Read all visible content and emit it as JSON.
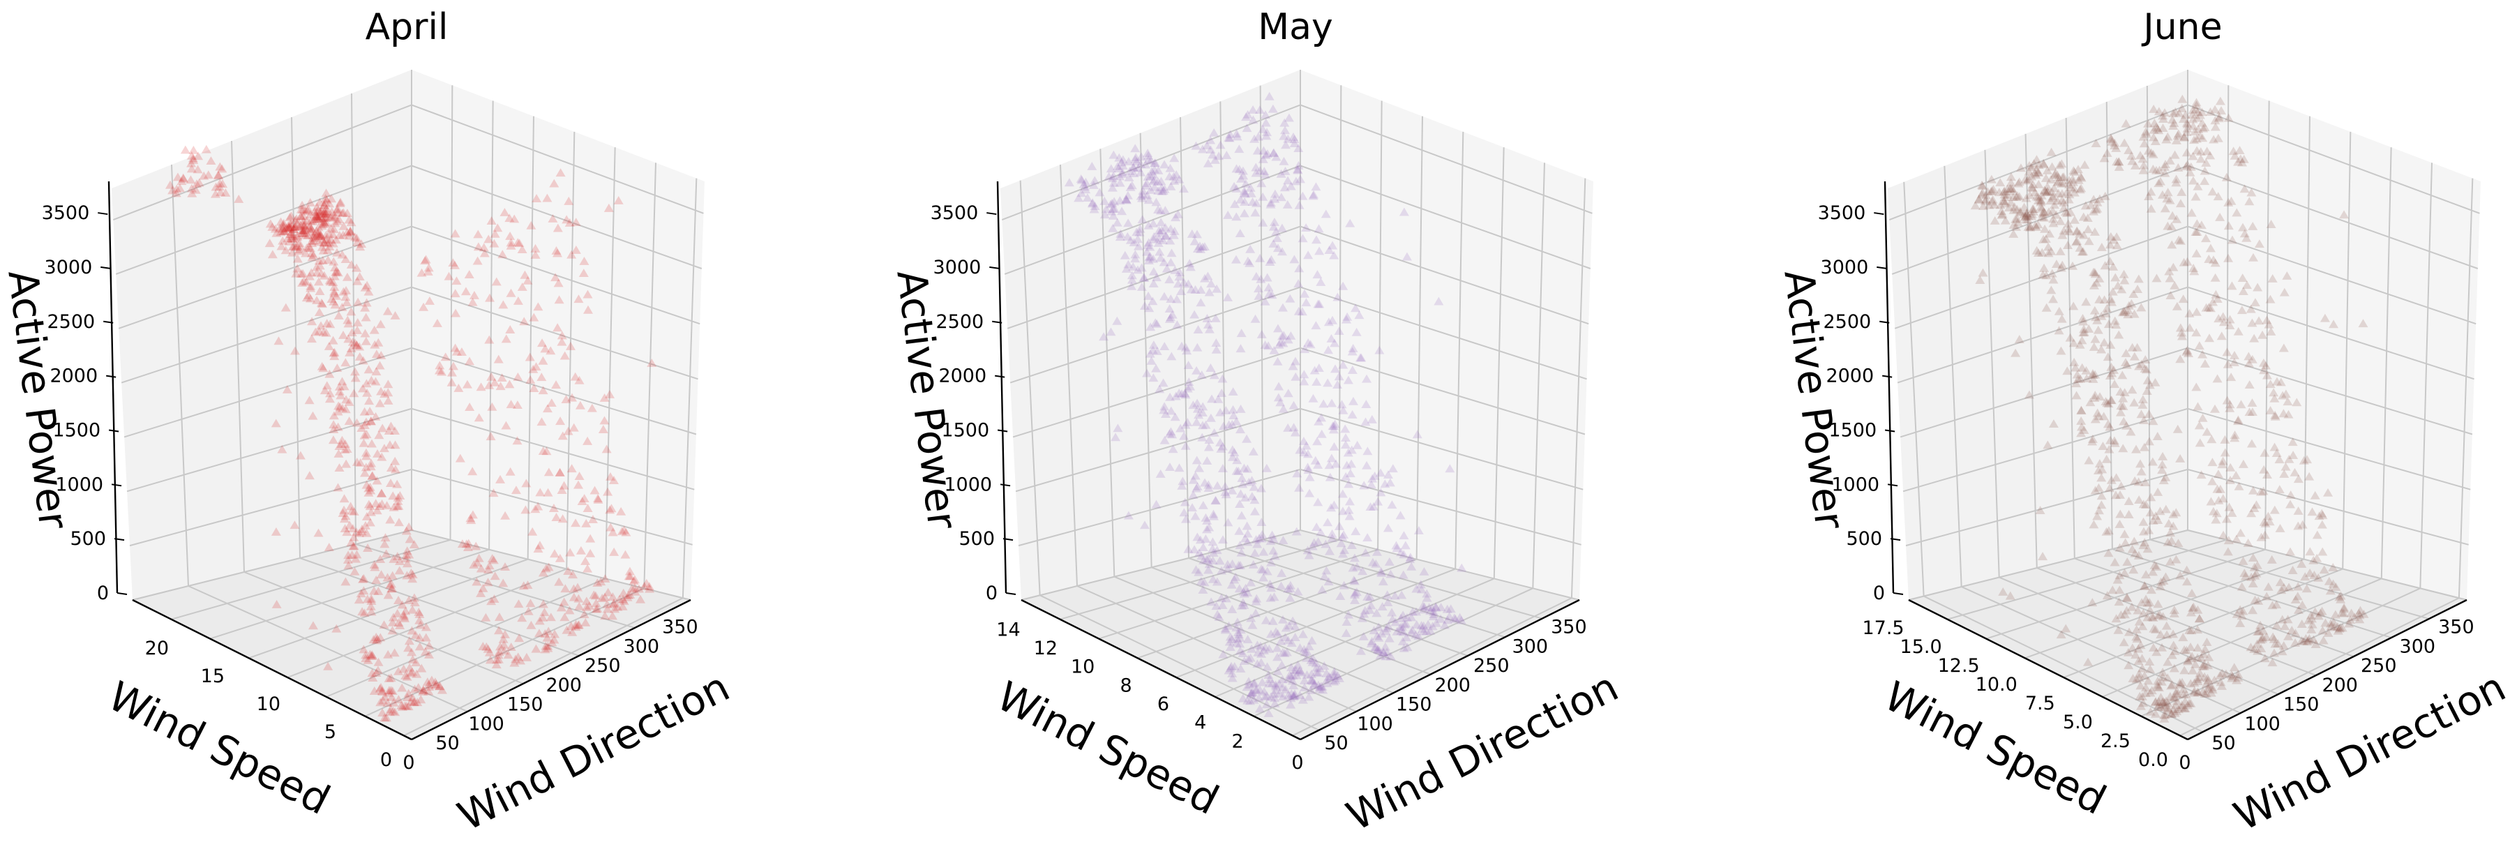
{
  "chart_data": [
    {
      "type": "scatter",
      "subtype": "3d-scatter",
      "title": "April",
      "color": "#d62728",
      "marker": "triangle",
      "alpha": 0.2,
      "xlabel": "Wind Speed",
      "ylabel": "Wind Direction",
      "zlabel": "Active Power",
      "xlim": [
        0,
        25
      ],
      "ylim": [
        0,
        360
      ],
      "zlim": [
        0,
        3600
      ],
      "xticks": [
        "0",
        "5",
        "10",
        "15",
        "20"
      ],
      "yticks": [
        "0",
        "50",
        "100",
        "150",
        "200",
        "250",
        "300",
        "350"
      ],
      "zticks": [
        "0",
        "500",
        "1000",
        "1500",
        "2000",
        "2500",
        "3000",
        "3500"
      ],
      "xtick_values": [
        0,
        5,
        10,
        15,
        20
      ],
      "ytick_values": [
        0,
        50,
        100,
        150,
        200,
        250,
        300,
        350
      ],
      "ztick_values": [
        0,
        500,
        1000,
        1500,
        2000,
        2500,
        3000,
        3500
      ],
      "series": [
        {
          "clusters": [
            {
              "ws": [
                3,
                14
              ],
              "wd": [
                10,
                90
              ],
              "p_curve": true,
              "count": 650
            },
            {
              "ws": [
                2,
                10
              ],
              "wd": [
                150,
                350
              ],
              "p_curve": true,
              "count": 350
            },
            {
              "ws": [
                20,
                24
              ],
              "wd": [
                30,
                70
              ],
              "p": [
                3300,
                3600
              ],
              "count": 40
            }
          ]
        }
      ]
    },
    {
      "type": "scatter",
      "subtype": "3d-scatter",
      "title": "May",
      "color": "#9467bd",
      "marker": "triangle",
      "alpha": 0.2,
      "xlabel": "Wind Speed",
      "ylabel": "Wind Direction",
      "zlabel": "Active Power",
      "xlim": [
        0,
        15
      ],
      "ylim": [
        0,
        360
      ],
      "zlim": [
        0,
        3600
      ],
      "xticks": [
        "2",
        "4",
        "6",
        "8",
        "10",
        "12",
        "14"
      ],
      "yticks": [
        "0",
        "50",
        "100",
        "150",
        "200",
        "250",
        "300",
        "350"
      ],
      "zticks": [
        "0",
        "500",
        "1000",
        "1500",
        "2000",
        "2500",
        "3000",
        "3500"
      ],
      "xtick_values": [
        2,
        4,
        6,
        8,
        10,
        12,
        14
      ],
      "ytick_values": [
        0,
        50,
        100,
        150,
        200,
        250,
        300,
        350
      ],
      "ztick_values": [
        0,
        500,
        1000,
        1500,
        2000,
        2500,
        3000,
        3500
      ],
      "series": [
        {
          "clusters": [
            {
              "ws": [
                2,
                13
              ],
              "wd": [
                10,
                110
              ],
              "p_curve": true,
              "count": 650
            },
            {
              "ws": [
                2,
                12
              ],
              "wd": [
                150,
                260
              ],
              "p_curve": true,
              "count": 450
            }
          ]
        }
      ]
    },
    {
      "type": "scatter",
      "subtype": "3d-scatter",
      "title": "June",
      "color": "#8c564b",
      "marker": "triangle",
      "alpha": 0.2,
      "xlabel": "Wind Speed",
      "ylabel": "Wind Direction",
      "zlabel": "Active Power",
      "xlim": [
        0,
        18.5
      ],
      "ylim": [
        0,
        360
      ],
      "zlim": [
        0,
        3600
      ],
      "xticks": [
        "0.0",
        "2.5",
        "5.0",
        "7.5",
        "10.0",
        "12.5",
        "15.0",
        "17.5"
      ],
      "yticks": [
        "0",
        "50",
        "100",
        "150",
        "200",
        "250",
        "300",
        "350"
      ],
      "zticks": [
        "0",
        "500",
        "1000",
        "1500",
        "2000",
        "2500",
        "3000",
        "3500"
      ],
      "xtick_values": [
        0,
        2.5,
        5,
        7.5,
        10,
        12.5,
        15,
        17.5
      ],
      "ytick_values": [
        0,
        50,
        100,
        150,
        200,
        250,
        300,
        350
      ],
      "ztick_values": [
        0,
        500,
        1000,
        1500,
        2000,
        2500,
        3000,
        3500
      ],
      "series": [
        {
          "clusters": [
            {
              "ws": [
                2,
                15
              ],
              "wd": [
                10,
                110
              ],
              "p_curve": true,
              "count": 700
            },
            {
              "ws": [
                2,
                14
              ],
              "wd": [
                150,
                280
              ],
              "p_curve": true,
              "count": 500
            }
          ]
        }
      ]
    }
  ]
}
